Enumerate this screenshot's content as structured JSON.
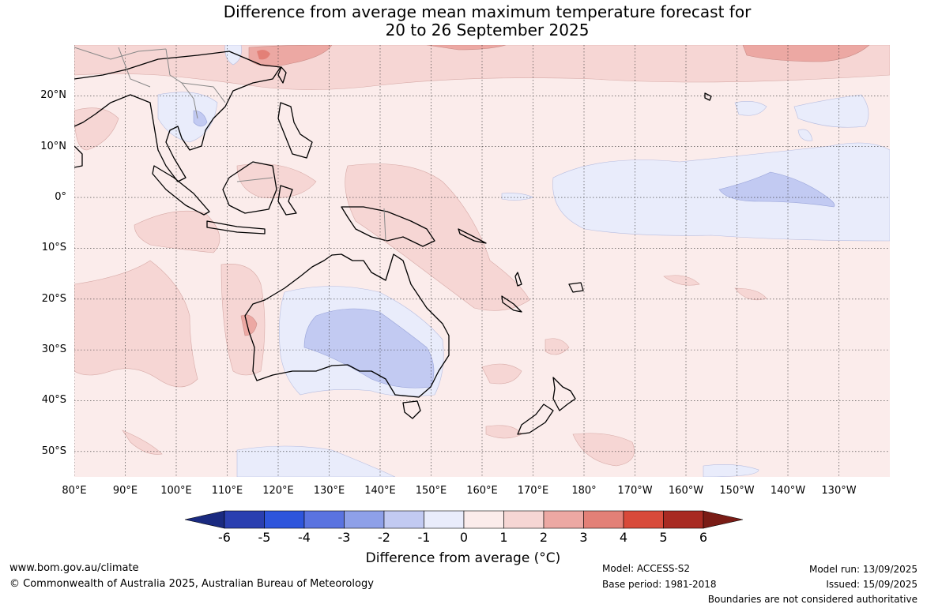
{
  "title": {
    "line1": "Difference from average mean maximum temperature forecast for",
    "line2": "20 to 26 September 2025"
  },
  "map": {
    "extent": {
      "lon_min": 80,
      "lon_max": 240,
      "lat_min": -55,
      "lat_max": 30
    },
    "lat_labels": [
      "20°N",
      "10°N",
      "0°",
      "10°S",
      "20°S",
      "30°S",
      "40°S",
      "50°S"
    ],
    "lat_values": [
      20,
      10,
      0,
      -10,
      -20,
      -30,
      -40,
      -50
    ],
    "lon_labels": [
      "80°E",
      "90°E",
      "100°E",
      "110°E",
      "120°E",
      "130°E",
      "140°E",
      "150°E",
      "160°E",
      "170°E",
      "180°",
      "170°W",
      "160°W",
      "150°W",
      "140°W",
      "130°W"
    ],
    "lon_values": [
      80,
      90,
      100,
      110,
      120,
      130,
      140,
      150,
      160,
      170,
      180,
      190,
      200,
      210,
      220,
      230
    ],
    "background_anomaly_color": "#fbeceb"
  },
  "colorbar": {
    "ticks": [
      "-6",
      "-5",
      "-4",
      "-3",
      "-2",
      "-1",
      "0",
      "1",
      "2",
      "3",
      "4",
      "5",
      "6"
    ],
    "colors": [
      "#1a2a80",
      "#2a3fb0",
      "#2e55dc",
      "#5a73e0",
      "#8ea0e8",
      "#c2caf2",
      "#e9ecfb",
      "#fbeceb",
      "#f6d6d4",
      "#eca8a3",
      "#e38077",
      "#d84a3a",
      "#a82a22",
      "#7a1c16"
    ],
    "title": "Difference from average (°C)"
  },
  "footer": {
    "website": "www.bom.gov.au/climate",
    "copyright": "© Commonwealth of Australia 2025, Australian Bureau of Meteorology",
    "model": "Model: ACCESS-S2",
    "base_period": "Base period: 1981-2018",
    "model_run": "Model run: 13/09/2025",
    "issued": "Issued: 15/09/2025",
    "boundaries": "Boundaries are not considered authoritative"
  }
}
